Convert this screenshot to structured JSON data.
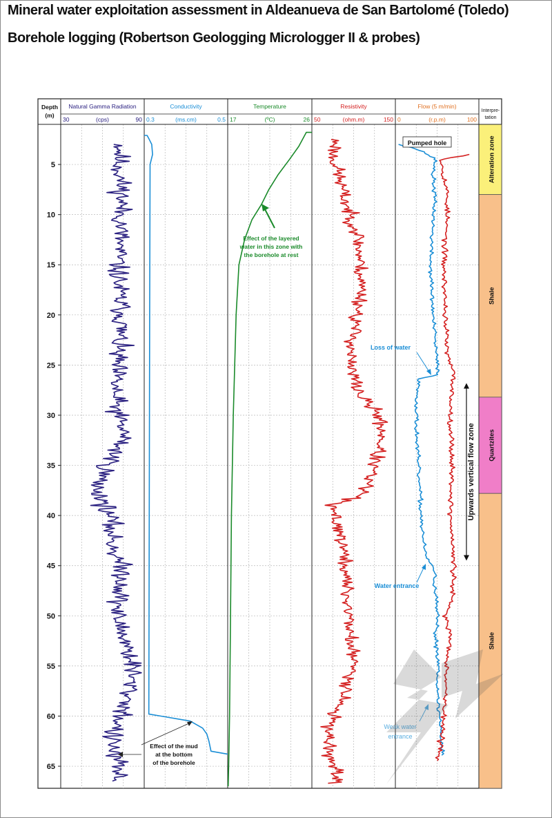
{
  "title": "Mineral water exploitation assessment in Aldeanueva de San Bartolomé (Toledo)",
  "subtitle": "Borehole logging (Robertson Geologging Micrologger II & probes)",
  "chart_data": {
    "type": "line",
    "depth_axis": {
      "label": "Depth",
      "unit": "(m)",
      "ticks": [
        5,
        10,
        15,
        20,
        25,
        30,
        35,
        40,
        45,
        50,
        55,
        60,
        65
      ],
      "range": [
        1,
        67.2
      ]
    },
    "tracks": [
      {
        "name": "Natural Gamma Radiation",
        "unit": "(cps)",
        "min": 30,
        "max": 90,
        "min_label": "30",
        "max_label": "90",
        "color": "#2a2080",
        "series": [
          {
            "name": "Natural Gamma Radiation",
            "color": "#2a2080",
            "noise": 6,
            "noise_step": 0.12,
            "seed": 11,
            "depth": [
              3.0,
              5,
              8,
              12,
              15,
              18,
              20,
              25,
              28,
              30,
              32,
              35,
              37,
              38.5,
              40,
              43,
              46,
              50,
              53,
              55,
              58,
              60,
              61,
              62,
              64,
              66.5
            ],
            "value": [
              73,
              72,
              74,
              73,
              71,
              72,
              74,
              70,
              69,
              71,
              76,
              64,
              56,
              60,
              65,
              68,
              75,
              70,
              78,
              82,
              79,
              74,
              70,
              66,
              69,
              72
            ]
          }
        ]
      },
      {
        "name": "Conductivity",
        "unit": "(ms.cm)",
        "min": 0.3,
        "max": 0.5,
        "min_label": "0.3",
        "max_label": "0.5",
        "color": "#1a8ed6",
        "series": [
          {
            "name": "Conductivity",
            "color": "#1a8ed6",
            "noise": 0,
            "seed": 1,
            "depth": [
              2.1,
              2.1,
              2.5,
              3.0,
              4.0,
              5.0,
              20,
              40,
              59.8,
              60.0,
              60.5,
              61.2,
              61.8,
              62.5,
              63.5,
              63.8,
              63.8
            ],
            "value": [
              0.3,
              0.307,
              0.312,
              0.318,
              0.32,
              0.314,
              0.313,
              0.312,
              0.311,
              0.34,
              0.41,
              0.44,
              0.45,
              0.455,
              0.46,
              0.5,
              0.5
            ]
          }
        ]
      },
      {
        "name": "Temperature",
        "unit": "(ºC)",
        "min": 17,
        "max": 26,
        "min_label": "17",
        "max_label": "26",
        "color": "#1a8a2a",
        "series": [
          {
            "name": "Temperature",
            "color": "#1a8a2a",
            "noise": 0,
            "seed": 2,
            "depth": [
              1.8,
              1.8,
              3.2,
              4.5,
              6.0,
              7.5,
              9.0,
              10.5,
              12.5,
              15,
              20,
              30,
              40,
              50,
              60,
              65,
              67
            ],
            "value": [
              26.0,
              25.4,
              24.6,
              23.6,
              22.4,
              21.4,
              20.6,
              19.6,
              18.8,
              18.2,
              17.9,
              17.6,
              17.4,
              17.3,
              17.2,
              17.1,
              17.05
            ]
          }
        ]
      },
      {
        "name": "Resistivity",
        "unit": "(ohm.m)",
        "min": 50,
        "max": 150,
        "min_label": "50",
        "max_label": "150",
        "color": "#d42020",
        "series": [
          {
            "name": "Resistivity",
            "color": "#d42020",
            "noise": 7,
            "noise_step": 0.12,
            "seed": 23,
            "depth": [
              2.5,
              3,
              4,
              6,
              8,
              10,
              12,
              15,
              18,
              20,
              22,
              25,
              28,
              30,
              32,
              34,
              36,
              38,
              39,
              40,
              42,
              45,
              48,
              50,
              52,
              55,
              58,
              60,
              62,
              64,
              66.8
            ],
            "value": [
              76,
              80,
              75,
              82,
              88,
              95,
              105,
              108,
              110,
              104,
              100,
              95,
              108,
              130,
              135,
              128,
              120,
              110,
              70,
              78,
              85,
              90,
              92,
              95,
              96,
              100,
              90,
              75,
              70,
              72,
              80
            ]
          }
        ]
      },
      {
        "name": "Flow (5 m/min)",
        "unit": "(r.p.m)",
        "min": 0,
        "max": 100,
        "min_label": "0",
        "max_label": "100",
        "color": "#e07020",
        "series": [
          {
            "name": "Pumped hole",
            "color": "#1a8ed6",
            "noise": 2,
            "noise_step": 0.15,
            "seed": 37,
            "depth": [
              3.0,
              3.3,
              3.8,
              4.5,
              6,
              8,
              10,
              12,
              15,
              20,
              23,
              25,
              26,
              26.3,
              27,
              30,
              33,
              36,
              40,
              43,
              44.5,
              45,
              48,
              50,
              52,
              55,
              58,
              60,
              62,
              64
            ],
            "value": [
              5,
              20,
              35,
              48,
              45,
              47,
              46,
              44,
              42,
              45,
              48,
              50,
              52,
              30,
              27,
              25,
              26,
              28,
              31,
              34,
              38,
              46,
              48,
              50,
              48,
              52,
              50,
              53,
              55,
              57
            ]
          },
          {
            "name": "Borehole at rest",
            "color": "#d42020",
            "noise": 2.5,
            "noise_step": 0.15,
            "seed": 53,
            "depth": [
              4.0,
              4.5,
              6,
              8,
              10,
              12,
              15,
              20,
              24,
              25,
              26,
              28,
              30,
              35,
              40,
              45,
              48,
              50,
              52,
              55,
              58,
              60,
              62,
              64.5
            ],
            "value": [
              92,
              55,
              58,
              62,
              62,
              60,
              58,
              60,
              62,
              66,
              70,
              67,
              66,
              68,
              66,
              70,
              68,
              60,
              66,
              62,
              60,
              58,
              55,
              52
            ]
          }
        ]
      }
    ],
    "interpretation": {
      "header": "Interpre-tation",
      "zones": [
        {
          "label": "Alteration zone",
          "top": 1.0,
          "bottom": 8.0,
          "color": "#fbf07a"
        },
        {
          "label": "Shale",
          "top": 8.0,
          "bottom": 28.2,
          "color": "#f8c08a"
        },
        {
          "label": "Quartzites",
          "top": 28.2,
          "bottom": 37.8,
          "color": "#f07ec8"
        },
        {
          "label": "Shale",
          "top": 37.8,
          "bottom": 67.2,
          "color": "#f8c08a"
        }
      ]
    },
    "annotations": {
      "temperature_note": [
        "Effect of the layered",
        "water in this zone with",
        "the borehole at rest"
      ],
      "mud_note": [
        "Effect of the mud",
        "at the bottom",
        "of the borehole"
      ],
      "pumped_hole": "Pumped hole",
      "loss_of_water": "Loss of water",
      "water_entrance": "Water entrance",
      "weak_water_entrance": [
        "Weak water",
        "entrance"
      ],
      "flow_zone": "Upwards vertical flow zone",
      "flow_zone_range": [
        26.8,
        44.5
      ]
    },
    "grid": true
  }
}
